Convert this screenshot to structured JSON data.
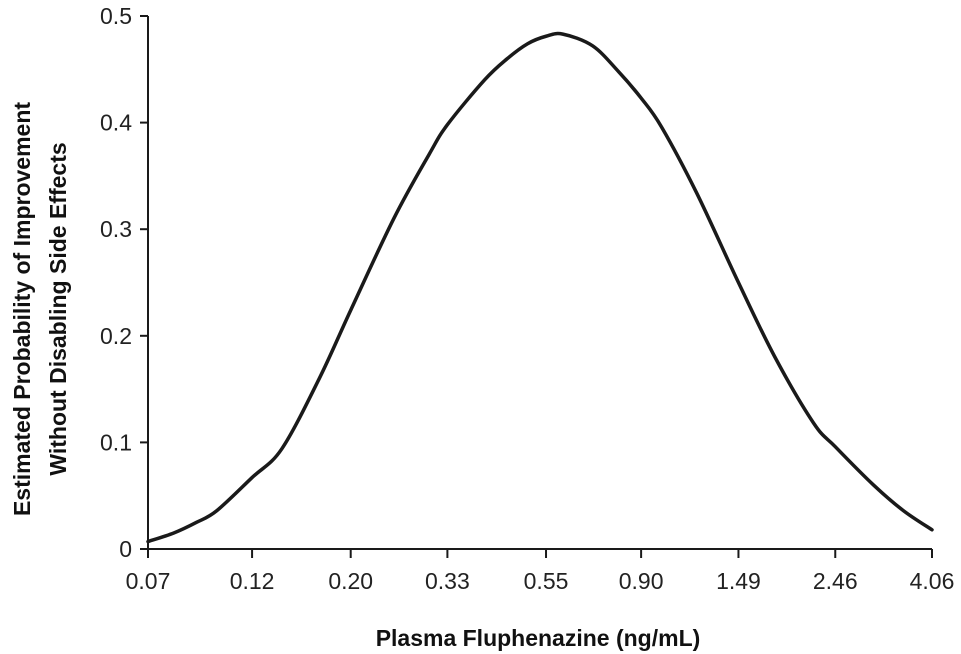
{
  "chart_data": {
    "type": "line",
    "title": "",
    "xlabel": "Plasma Fluphenazine (ng/mL)",
    "ylabel_lines": [
      "Estimated Probability of Improvement",
      "Without Disabling Side Effects"
    ],
    "x_scale": "log",
    "x_ticks": [
      "0.07",
      "0.12",
      "0.20",
      "0.33",
      "0.55",
      "0.90",
      "1.49",
      "2.46",
      "4.06"
    ],
    "y_ticks": [
      "0",
      "0.1",
      "0.2",
      "0.3",
      "0.4",
      "0.5"
    ],
    "ylim": [
      0,
      0.5
    ],
    "grid": false,
    "line_color": "#1a1a1a",
    "series": [
      {
        "x": [
          0.07,
          0.08,
          0.09,
          0.1,
          0.12,
          0.14,
          0.17,
          0.2,
          0.25,
          0.3,
          0.33,
          0.4,
          0.45,
          0.5,
          0.55,
          0.6,
          0.7,
          0.8,
          0.9,
          1.0,
          1.2,
          1.49,
          1.8,
          2.2,
          2.46,
          3.0,
          3.5,
          4.06
        ],
        "y": [
          0.007,
          0.015,
          0.025,
          0.036,
          0.067,
          0.094,
          0.16,
          0.224,
          0.31,
          0.37,
          0.398,
          0.44,
          0.46,
          0.474,
          0.481,
          0.483,
          0.472,
          0.448,
          0.423,
          0.396,
          0.334,
          0.25,
          0.18,
          0.118,
          0.096,
          0.06,
          0.036,
          0.018
        ]
      }
    ]
  }
}
